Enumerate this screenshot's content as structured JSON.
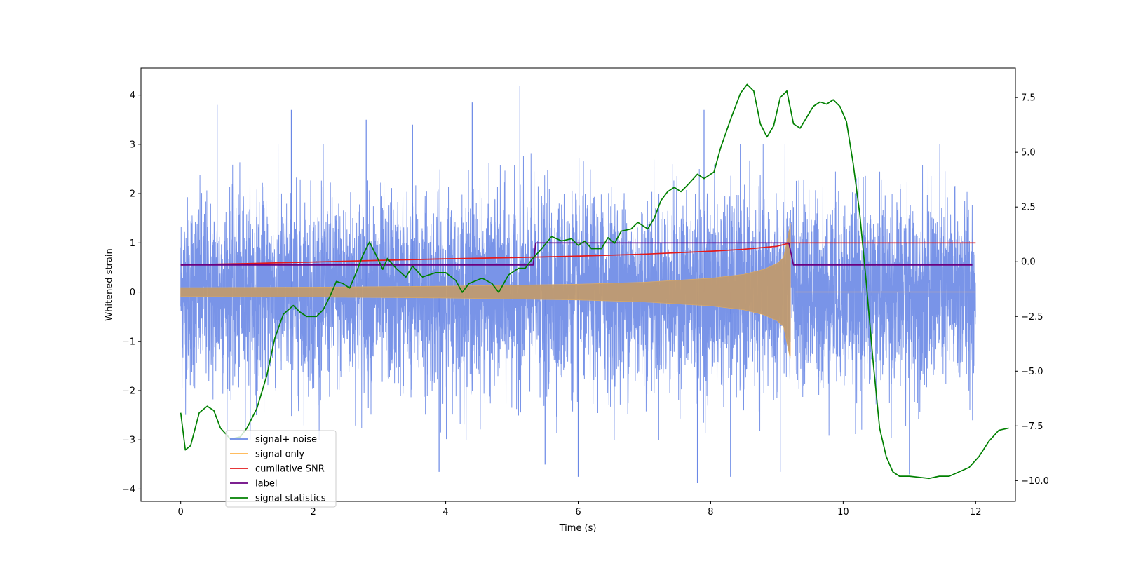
{
  "chart_data": {
    "type": "line",
    "xlabel": "Time (s)",
    "ylabel": "Whitened strain",
    "xlim": [
      -0.6,
      12.6
    ],
    "ylim": [
      -4.25,
      4.55
    ],
    "y2lim": [
      -10.95,
      8.85
    ],
    "x_ticks": [
      0,
      2,
      4,
      6,
      8,
      10,
      12
    ],
    "y_ticks": [
      -4,
      -3,
      -2,
      -1,
      0,
      1,
      2,
      3,
      4
    ],
    "y2_ticks": [
      -10.0,
      -7.5,
      -5.0,
      -2.5,
      0.0,
      2.5,
      5.0,
      7.5
    ],
    "x_tick_labels": [
      "0",
      "2",
      "4",
      "6",
      "8",
      "10",
      "12"
    ],
    "y_tick_labels": [
      "−4",
      "−3",
      "−2",
      "−1",
      "0",
      "1",
      "2",
      "3",
      "4"
    ],
    "y2_tick_labels": [
      "−10.0",
      "−7.5",
      "−5.0",
      "−2.5",
      "0.0",
      "2.5",
      "5.0",
      "7.5"
    ],
    "grid": false,
    "legend_position": "lower-left",
    "series": [
      {
        "name": "signal+ noise",
        "color": "#6a88e6",
        "axis": "left",
        "kind": "noise",
        "x_range": [
          0,
          12
        ],
        "typical_range": [
          -2.4,
          2.4
        ],
        "extremes": [
          -3.9,
          4.2
        ],
        "peaks": [
          {
            "x": 0.55,
            "y": 3.8
          },
          {
            "x": 1.67,
            "y": 3.7
          },
          {
            "x": 2.8,
            "y": 3.5
          },
          {
            "x": 3.5,
            "y": 3.4
          },
          {
            "x": 4.4,
            "y": 3.85
          },
          {
            "x": 5.12,
            "y": 4.18
          },
          {
            "x": 7.9,
            "y": 3.7
          },
          {
            "x": 3.9,
            "y": -3.65
          },
          {
            "x": 5.5,
            "y": -3.5
          },
          {
            "x": 6.0,
            "y": -3.75
          },
          {
            "x": 7.8,
            "y": -3.88
          },
          {
            "x": 8.3,
            "y": -3.75
          },
          {
            "x": 9.05,
            "y": -3.65
          },
          {
            "x": 11.0,
            "y": -3.7
          }
        ]
      },
      {
        "name": "signal only",
        "color": "#ffb347",
        "axis": "left",
        "kind": "chirp",
        "x_range": [
          0,
          12
        ],
        "merger_time": 9.2,
        "envelope": [
          [
            0,
            0.09
          ],
          [
            2,
            0.1
          ],
          [
            4,
            0.12
          ],
          [
            6,
            0.16
          ],
          [
            7,
            0.2
          ],
          [
            8,
            0.28
          ],
          [
            8.5,
            0.36
          ],
          [
            8.8,
            0.46
          ],
          [
            9.0,
            0.58
          ],
          [
            9.1,
            0.7
          ],
          [
            9.2,
            1.35
          ]
        ],
        "post_merger_value": 0.0
      },
      {
        "name": "cumilative SNR",
        "color": "#e31a1c",
        "axis": "left",
        "points": [
          [
            0,
            0.55
          ],
          [
            1,
            0.58
          ],
          [
            2,
            0.61
          ],
          [
            3,
            0.645
          ],
          [
            4,
            0.675
          ],
          [
            5,
            0.7
          ],
          [
            6,
            0.73
          ],
          [
            7,
            0.77
          ],
          [
            8,
            0.83
          ],
          [
            8.5,
            0.87
          ],
          [
            9.0,
            0.93
          ],
          [
            9.2,
            1.0
          ],
          [
            12,
            1.0
          ]
        ]
      },
      {
        "name": "label",
        "color": "#6a0080",
        "axis": "left",
        "points": [
          [
            0,
            0.55
          ],
          [
            5.32,
            0.55
          ],
          [
            5.36,
            1.0
          ],
          [
            9.18,
            1.0
          ],
          [
            9.25,
            0.55
          ],
          [
            11.95,
            0.55
          ]
        ]
      },
      {
        "name": "signal statistics",
        "color": "#008000",
        "axis": "right",
        "points": [
          [
            0.0,
            -6.9
          ],
          [
            0.07,
            -8.6
          ],
          [
            0.15,
            -8.4
          ],
          [
            0.28,
            -6.9
          ],
          [
            0.4,
            -6.6
          ],
          [
            0.5,
            -6.8
          ],
          [
            0.6,
            -7.6
          ],
          [
            0.75,
            -8.1
          ],
          [
            0.9,
            -8.0
          ],
          [
            1.0,
            -7.6
          ],
          [
            1.15,
            -6.7
          ],
          [
            1.3,
            -5.2
          ],
          [
            1.42,
            -3.5
          ],
          [
            1.55,
            -2.4
          ],
          [
            1.7,
            -2.0
          ],
          [
            1.8,
            -2.3
          ],
          [
            1.9,
            -2.5
          ],
          [
            2.05,
            -2.5
          ],
          [
            2.15,
            -2.2
          ],
          [
            2.25,
            -1.6
          ],
          [
            2.35,
            -0.9
          ],
          [
            2.45,
            -1.0
          ],
          [
            2.55,
            -1.2
          ],
          [
            2.65,
            -0.5
          ],
          [
            2.75,
            0.3
          ],
          [
            2.85,
            0.9
          ],
          [
            2.95,
            0.3
          ],
          [
            3.05,
            -0.35
          ],
          [
            3.12,
            0.15
          ],
          [
            3.25,
            -0.3
          ],
          [
            3.4,
            -0.7
          ],
          [
            3.5,
            -0.2
          ],
          [
            3.65,
            -0.7
          ],
          [
            3.85,
            -0.5
          ],
          [
            4.0,
            -0.5
          ],
          [
            4.15,
            -0.85
          ],
          [
            4.25,
            -1.4
          ],
          [
            4.35,
            -1.0
          ],
          [
            4.55,
            -0.75
          ],
          [
            4.7,
            -1.0
          ],
          [
            4.8,
            -1.4
          ],
          [
            4.95,
            -0.6
          ],
          [
            5.1,
            -0.3
          ],
          [
            5.2,
            -0.3
          ],
          [
            5.3,
            0.1
          ],
          [
            5.45,
            0.6
          ],
          [
            5.6,
            1.15
          ],
          [
            5.75,
            0.95
          ],
          [
            5.9,
            1.05
          ],
          [
            6.0,
            0.75
          ],
          [
            6.1,
            0.95
          ],
          [
            6.2,
            0.6
          ],
          [
            6.35,
            0.6
          ],
          [
            6.45,
            1.1
          ],
          [
            6.55,
            0.85
          ],
          [
            6.65,
            1.4
          ],
          [
            6.8,
            1.5
          ],
          [
            6.9,
            1.8
          ],
          [
            7.05,
            1.5
          ],
          [
            7.15,
            2.0
          ],
          [
            7.25,
            2.8
          ],
          [
            7.35,
            3.2
          ],
          [
            7.45,
            3.4
          ],
          [
            7.55,
            3.2
          ],
          [
            7.65,
            3.5
          ],
          [
            7.8,
            4.0
          ],
          [
            7.9,
            3.8
          ],
          [
            8.05,
            4.1
          ],
          [
            8.15,
            5.2
          ],
          [
            8.3,
            6.5
          ],
          [
            8.45,
            7.7
          ],
          [
            8.55,
            8.1
          ],
          [
            8.65,
            7.8
          ],
          [
            8.75,
            6.3
          ],
          [
            8.85,
            5.7
          ],
          [
            8.95,
            6.2
          ],
          [
            9.05,
            7.5
          ],
          [
            9.15,
            7.8
          ],
          [
            9.25,
            6.3
          ],
          [
            9.35,
            6.1
          ],
          [
            9.45,
            6.6
          ],
          [
            9.55,
            7.1
          ],
          [
            9.65,
            7.3
          ],
          [
            9.75,
            7.2
          ],
          [
            9.85,
            7.4
          ],
          [
            9.95,
            7.1
          ],
          [
            10.05,
            6.4
          ],
          [
            10.15,
            4.5
          ],
          [
            10.25,
            2.2
          ],
          [
            10.35,
            -1.0
          ],
          [
            10.45,
            -4.5
          ],
          [
            10.55,
            -7.6
          ],
          [
            10.65,
            -8.9
          ],
          [
            10.75,
            -9.6
          ],
          [
            10.85,
            -9.8
          ],
          [
            11.0,
            -9.8
          ],
          [
            11.15,
            -9.85
          ],
          [
            11.3,
            -9.9
          ],
          [
            11.45,
            -9.8
          ],
          [
            11.6,
            -9.8
          ],
          [
            11.75,
            -9.6
          ],
          [
            11.9,
            -9.4
          ],
          [
            12.05,
            -8.9
          ],
          [
            12.2,
            -8.2
          ],
          [
            12.35,
            -7.7
          ],
          [
            12.5,
            -7.6
          ]
        ]
      }
    ]
  }
}
